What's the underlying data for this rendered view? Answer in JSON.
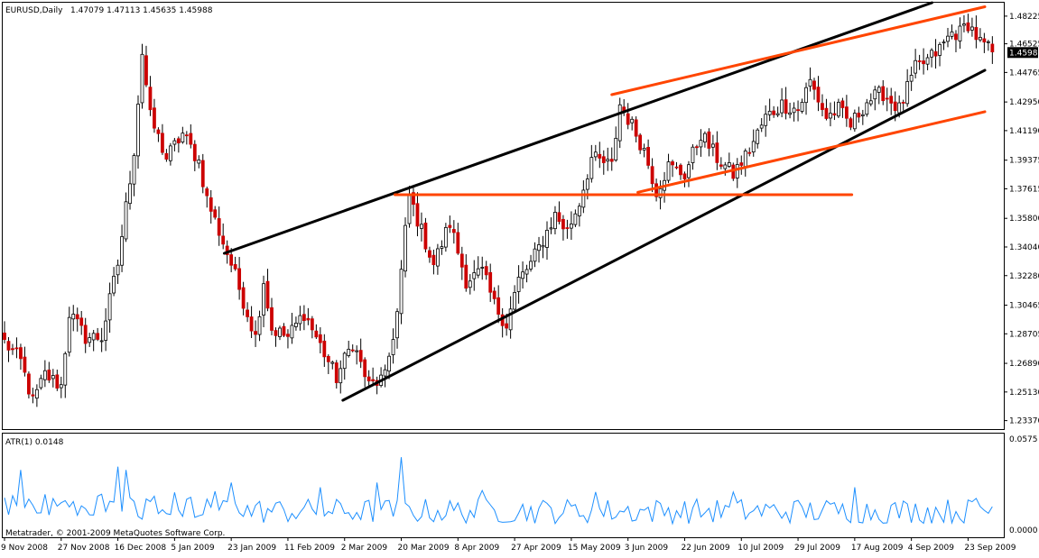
{
  "window": {
    "symbol_label": "EURUSD,Daily",
    "ohlc": "1.47079 1.47113 1.45635 1.45988",
    "copyright": "Metatrader, © 2001-2009 MetaQuotes Software Corp."
  },
  "colors": {
    "bull": "#ffffff",
    "bear": "#cc0000",
    "wick": "#000000",
    "atr": "#1e90ff",
    "channel_black": "#000000",
    "channel_orange": "#ff4500",
    "background": "#ffffff"
  },
  "chart_data": [
    {
      "type": "candlestick",
      "title": "EURUSD,Daily",
      "subtitle": "1.47079 1.47113 1.45635 1.45988",
      "ylim": [
        1.2285,
        1.4905
      ],
      "y_ticks": [
        "1.48225",
        "1.46525",
        "1.44765",
        "1.42950",
        "1.41190",
        "1.39375",
        "1.37615",
        "1.35800",
        "1.34040",
        "1.32280",
        "1.30465",
        "1.28705",
        "1.26890",
        "1.25130",
        "1.23370"
      ],
      "current_price": "1.45988",
      "x_tick_labels": [
        "9 Nov 2008",
        "27 Nov 2008",
        "16 Dec 2008",
        "5 Jan 2009",
        "23 Jan 2009",
        "11 Feb 2009",
        "2 Mar 2009",
        "20 Mar 2009",
        "8 Apr 2009",
        "27 Apr 2009",
        "15 May 2009",
        "3 Jun 2009",
        "22 Jun 2009",
        "10 Jul 2009",
        "29 Jul 2009",
        "17 Aug 2009",
        "4 Sep 2009",
        "23 Sep 2009"
      ],
      "x_tick_bar_index": [
        0,
        14,
        28,
        42,
        56,
        70,
        84,
        98,
        112,
        126,
        140,
        154,
        168,
        182,
        196,
        210,
        224,
        238
      ],
      "bars": 245,
      "anchors": [
        [
          0,
          1.282
        ],
        [
          4,
          1.27
        ],
        [
          7,
          1.245
        ],
        [
          10,
          1.262
        ],
        [
          14,
          1.255
        ],
        [
          16,
          1.3
        ],
        [
          20,
          1.285
        ],
        [
          24,
          1.285
        ],
        [
          28,
          1.33
        ],
        [
          32,
          1.4
        ],
        [
          34,
          1.46
        ],
        [
          36,
          1.42
        ],
        [
          40,
          1.395
        ],
        [
          44,
          1.41
        ],
        [
          48,
          1.393
        ],
        [
          50,
          1.37
        ],
        [
          53,
          1.35
        ],
        [
          56,
          1.33
        ],
        [
          62,
          1.285
        ],
        [
          64,
          1.32
        ],
        [
          66,
          1.29
        ],
        [
          70,
          1.285
        ],
        [
          74,
          1.3
        ],
        [
          78,
          1.28
        ],
        [
          82,
          1.26
        ],
        [
          86,
          1.282
        ],
        [
          90,
          1.255
        ],
        [
          94,
          1.26
        ],
        [
          97,
          1.3
        ],
        [
          99,
          1.35
        ],
        [
          100,
          1.372
        ],
        [
          103,
          1.35
        ],
        [
          106,
          1.33
        ],
        [
          110,
          1.355
        ],
        [
          114,
          1.32
        ],
        [
          118,
          1.325
        ],
        [
          121,
          1.305
        ],
        [
          124,
          1.293
        ],
        [
          127,
          1.32
        ],
        [
          130,
          1.33
        ],
        [
          133,
          1.345
        ],
        [
          136,
          1.36
        ],
        [
          139,
          1.35
        ],
        [
          142,
          1.368
        ],
        [
          145,
          1.395
        ],
        [
          150,
          1.39
        ],
        [
          152,
          1.428
        ],
        [
          155,
          1.415
        ],
        [
          158,
          1.4
        ],
        [
          161,
          1.375
        ],
        [
          164,
          1.39
        ],
        [
          168,
          1.385
        ],
        [
          172,
          1.41
        ],
        [
          176,
          1.395
        ],
        [
          180,
          1.385
        ],
        [
          184,
          1.4
        ],
        [
          188,
          1.42
        ],
        [
          192,
          1.428
        ],
        [
          196,
          1.425
        ],
        [
          199,
          1.442
        ],
        [
          203,
          1.42
        ],
        [
          206,
          1.425
        ],
        [
          209,
          1.415
        ],
        [
          213,
          1.43
        ],
        [
          217,
          1.435
        ],
        [
          221,
          1.425
        ],
        [
          225,
          1.45
        ],
        [
          228,
          1.455
        ],
        [
          231,
          1.462
        ],
        [
          234,
          1.472
        ],
        [
          236,
          1.472
        ],
        [
          238,
          1.478
        ],
        [
          241,
          1.466
        ],
        [
          244,
          1.46
        ]
      ],
      "series": [
        {
          "name": "EURUSD",
          "kind": "ohlc"
        }
      ],
      "trendlines": [
        {
          "color": "channel_black",
          "from": [
            "2009-01-20",
            1.3365
          ],
          "to": [
            "2009-10-10",
            1.502
          ]
        },
        {
          "color": "channel_black",
          "from": [
            "2009-03-02",
            1.2462
          ],
          "to": [
            "2009-10-10",
            1.449
          ]
        },
        {
          "color": "channel_orange",
          "from": [
            "2009-03-20",
            1.3725
          ],
          "to": [
            "2009-08-25",
            1.3725
          ]
        },
        {
          "color": "channel_orange",
          "from": [
            "2009-06-03",
            1.434
          ],
          "to": [
            "2009-10-10",
            1.488
          ]
        },
        {
          "color": "channel_orange",
          "from": [
            "2009-06-12",
            1.374
          ],
          "to": [
            "2009-10-10",
            1.4235
          ]
        }
      ]
    },
    {
      "type": "line",
      "title": "ATR(1) 0.0148",
      "ylim": [
        0.0,
        0.0575
      ],
      "y_ticks": [
        "0.0575",
        "0.0000"
      ],
      "spikes": [
        [
          4,
          0.038
        ],
        [
          28,
          0.04
        ],
        [
          30,
          0.038
        ],
        [
          56,
          0.03
        ],
        [
          78,
          0.027
        ],
        [
          92,
          0.03
        ],
        [
          98,
          0.046
        ],
        [
          118,
          0.025
        ],
        [
          146,
          0.024
        ],
        [
          180,
          0.024
        ],
        [
          210,
          0.027
        ],
        [
          240,
          0.02
        ]
      ],
      "last_value": 0.0148
    }
  ]
}
